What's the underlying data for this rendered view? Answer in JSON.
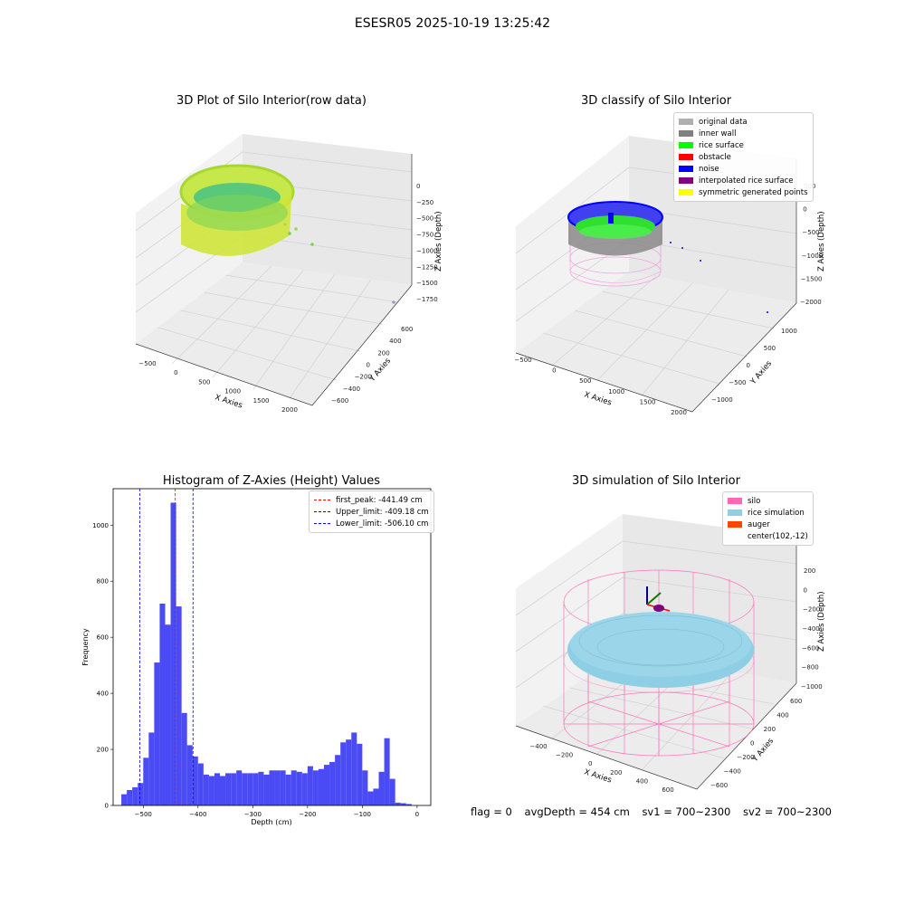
{
  "figure_title": "ESESR05 2025-10-19 13:25:42",
  "status": {
    "flag": "flag = 0",
    "avg_depth": "avgDepth = 454 cm",
    "sv1": "sv1 = 700~2300",
    "sv2": "sv2 = 700~2300"
  },
  "colors": {
    "hist_bar": "#4b4bf5",
    "first_peak": "#ff0000",
    "limits": "#0000ff",
    "silo": "#ff69b4",
    "rice_sim": "#8fcfe6",
    "auger": "#ff4500"
  },
  "chart_data": [
    {
      "type": "scatter",
      "title": "3D Plot of Silo Interior(row data)",
      "xlabel": "X Axies",
      "ylabel": "Y Axies",
      "zlabel": "Z Axies (Depth)",
      "x_ticks": [
        "−500",
        "0",
        "500",
        "1000",
        "1500",
        "2000"
      ],
      "y_ticks": [
        "600",
        "400",
        "200",
        "0",
        "−200",
        "−400",
        "−600"
      ],
      "z_ticks": [
        "0",
        "−250",
        "−500",
        "−750",
        "−1000",
        "−1250",
        "−1500",
        "−1750"
      ],
      "grid": true
    },
    {
      "type": "scatter",
      "title": "3D classify of Silo Interior",
      "xlabel": "X Axies",
      "ylabel": "Y Axies",
      "zlabel": "Z Axies (Depth)",
      "x_ticks": [
        "−500",
        "0",
        "500",
        "1000",
        "1500",
        "2000"
      ],
      "y_ticks": [
        "1000",
        "500",
        "0",
        "−500",
        "−1000"
      ],
      "z_ticks": [
        "500",
        "0",
        "−500",
        "−1000",
        "−1500",
        "−2000"
      ],
      "legend_position": "top-right",
      "legend": [
        {
          "label": "original data",
          "color": "#b0b0b0"
        },
        {
          "label": "inner wall",
          "color": "#808080"
        },
        {
          "label": "rice surface",
          "color": "#00ff00"
        },
        {
          "label": "obstacle",
          "color": "#ff0000"
        },
        {
          "label": "noise",
          "color": "#0000ff"
        },
        {
          "label": "interpolated rice surface",
          "color": "#800080"
        },
        {
          "label": "symmetric generated points",
          "color": "#ffff00"
        }
      ],
      "grid": true
    },
    {
      "type": "bar",
      "title": "Histogram of Z-Axies (Height) Values",
      "xlabel": "Depth (cm)",
      "ylabel": "Frequency",
      "xlim": [
        -555,
        25
      ],
      "ylim": [
        0,
        1130
      ],
      "x_ticks": [
        -500,
        -400,
        -300,
        -200,
        -100,
        0
      ],
      "x_tick_labels": [
        "−500",
        "−400",
        "−300",
        "−200",
        "−100",
        "0"
      ],
      "y_ticks": [
        0,
        200,
        400,
        600,
        800,
        1000
      ],
      "bin_width": 10,
      "bin_starts": [
        -540,
        -530,
        -520,
        -510,
        -500,
        -490,
        -480,
        -470,
        -460,
        -450,
        -440,
        -430,
        -420,
        -410,
        -400,
        -390,
        -380,
        -370,
        -360,
        -350,
        -340,
        -330,
        -320,
        -310,
        -300,
        -290,
        -280,
        -270,
        -260,
        -250,
        -240,
        -230,
        -220,
        -210,
        -200,
        -190,
        -180,
        -170,
        -160,
        -150,
        -140,
        -130,
        -120,
        -110,
        -100,
        -90,
        -80,
        -70,
        -60,
        -50,
        -40,
        -30,
        -20,
        -10
      ],
      "values": [
        40,
        55,
        65,
        80,
        170,
        260,
        510,
        720,
        645,
        1080,
        710,
        330,
        215,
        175,
        150,
        110,
        105,
        115,
        105,
        115,
        115,
        125,
        115,
        115,
        115,
        120,
        110,
        125,
        125,
        125,
        110,
        125,
        120,
        115,
        140,
        125,
        130,
        145,
        155,
        180,
        225,
        235,
        260,
        220,
        125,
        50,
        60,
        120,
        240,
        95,
        10,
        8,
        5,
        0
      ],
      "reference_lines": [
        {
          "label": "first_peak: -441.49 cm",
          "x": -441.49,
          "color": "#ff0000"
        },
        {
          "label": "Upper_limit: -409.18 cm",
          "x": -409.18,
          "color": "#0000ff"
        },
        {
          "label": "Lower_limit: -506.10 cm",
          "x": -506.1,
          "color": "#0000ff"
        }
      ],
      "legend_position": "top-right",
      "grid": false
    },
    {
      "type": "scatter",
      "title": "3D simulation of Silo Interior",
      "xlabel": "X Axies",
      "ylabel": "Y Axies",
      "zlabel": "Z Axies (Depth)",
      "x_ticks": [
        "−400",
        "−200",
        "0",
        "200",
        "400",
        "600"
      ],
      "y_ticks": [
        "600",
        "400",
        "200",
        "0",
        "−200",
        "−400",
        "−600"
      ],
      "z_ticks": [
        "200",
        "0",
        "−200",
        "−400",
        "−600",
        "−800",
        "−1000"
      ],
      "legend_position": "top-right",
      "legend": [
        {
          "label": "silo",
          "color": "#ff69b4"
        },
        {
          "label": "rice simulation",
          "color": "#8fcfe6"
        },
        {
          "label": "auger",
          "color": "#ff4500"
        },
        {
          "label": "center(102,-12)",
          "color": ""
        }
      ],
      "grid": true
    }
  ]
}
